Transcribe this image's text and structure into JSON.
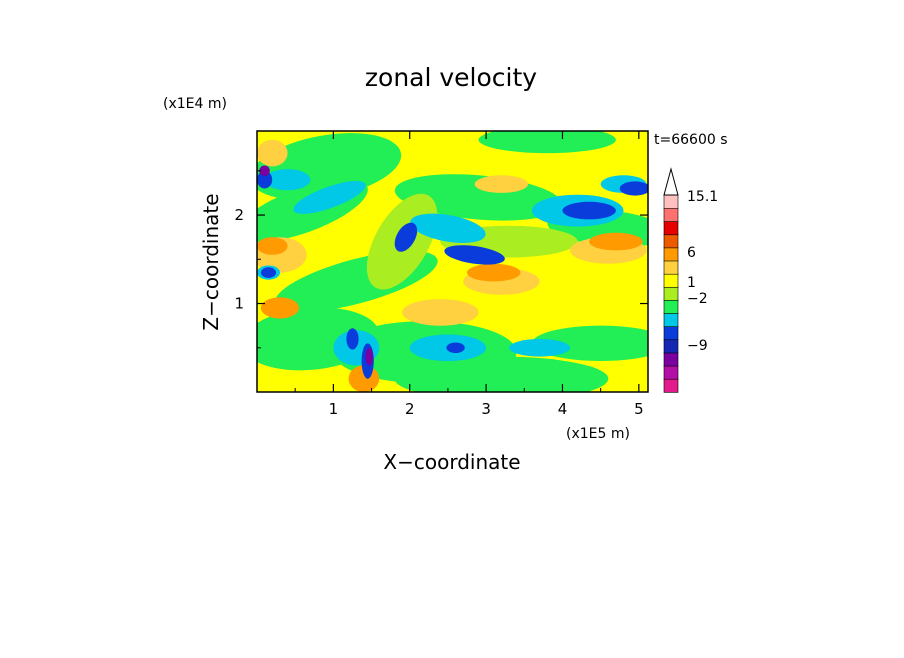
{
  "chart_data": {
    "type": "heatmap",
    "title": "zonal velocity",
    "xlabel": "X−coordinate",
    "ylabel": "Z−coordinate",
    "x_unit": "(x1E5 m)",
    "y_unit": "(x1E4 m)",
    "time_label": "t=66600 s",
    "xlim": [
      0,
      5.12
    ],
    "ylim": [
      0,
      2.95
    ],
    "x_ticks": [
      "1",
      "2",
      "3",
      "4",
      "5"
    ],
    "y_ticks": [
      "1",
      "2"
    ],
    "colorbar": {
      "labels": [
        "15.1",
        "6",
        "1",
        "−2",
        "−9"
      ],
      "colors": [
        "#e31a8c",
        "#b20fa6",
        "#7a00a0",
        "#1428b4",
        "#0a3cdc",
        "#00c8e6",
        "#22ee55",
        "#aaee22",
        "#ffff00",
        "#ffd040",
        "#ff9a00",
        "#ee5a00",
        "#e60000",
        "#ff7070",
        "#ffc0c0"
      ]
    },
    "colors": {
      "magenta": "#e31a8c",
      "purple": "#7a00a0",
      "dark_blue": "#1428b4",
      "blue": "#0a3cdc",
      "cyan": "#00c8e6",
      "green": "#22ee55",
      "light_green": "#aaee22",
      "yellow": "#ffff00",
      "light_orange": "#ffd040",
      "orange": "#ff9a00",
      "red": "#e60000",
      "pink": "#ff7070"
    }
  }
}
